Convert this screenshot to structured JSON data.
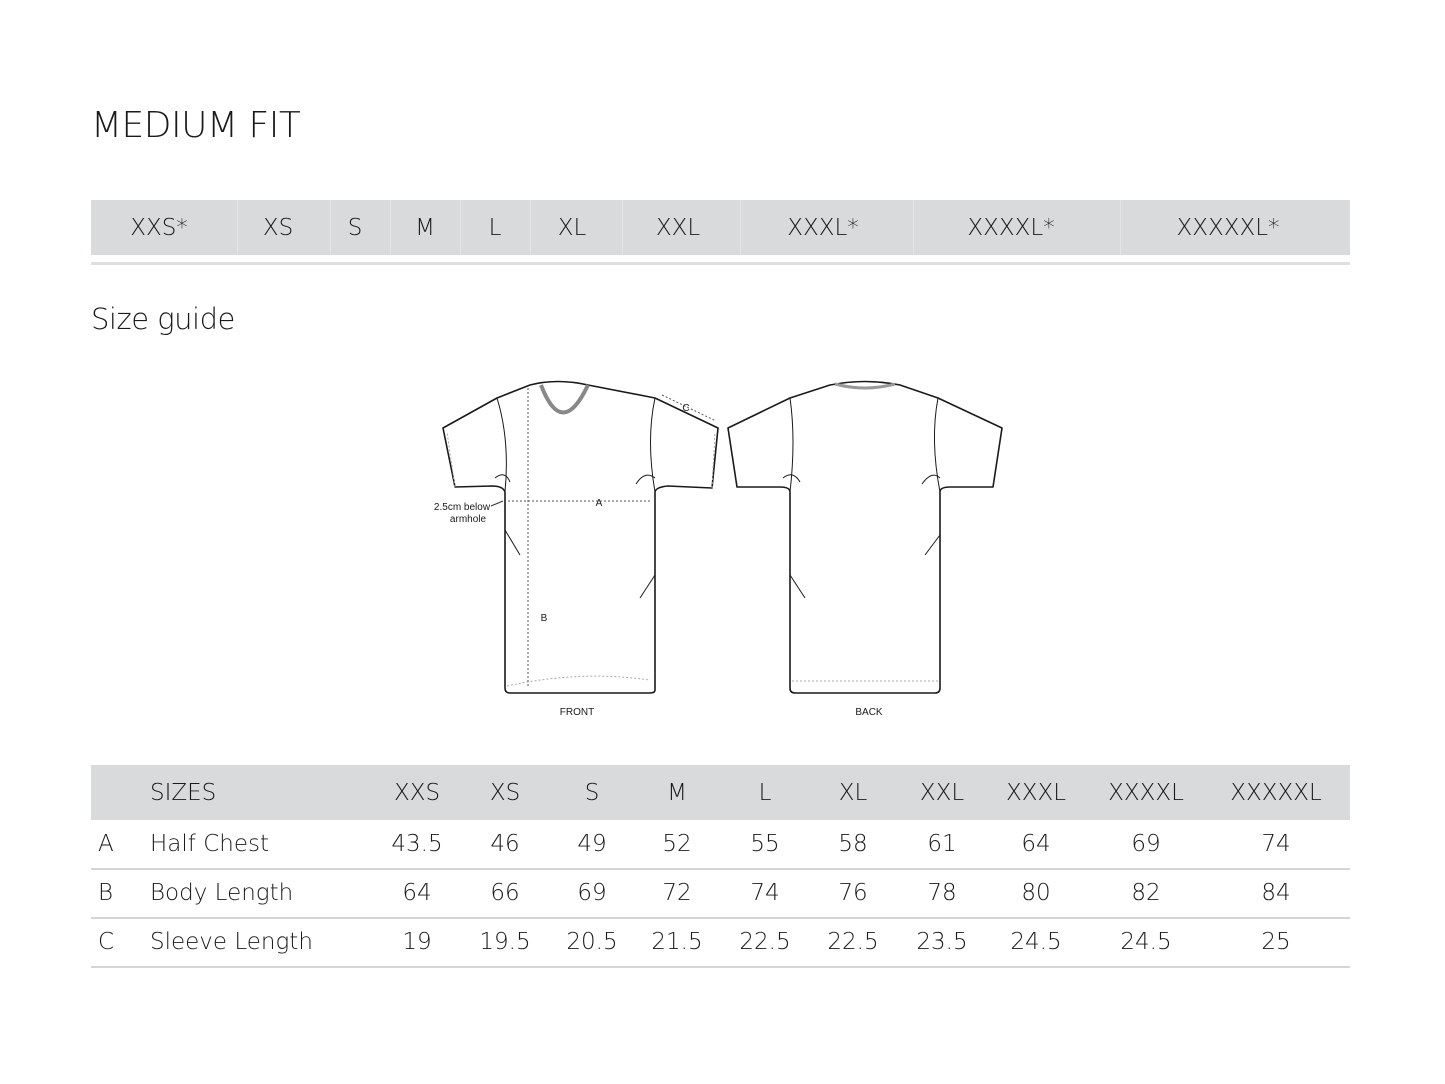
{
  "title": "MEDIUM FIT",
  "available_sizes": [
    "XXS*",
    "XS",
    "S",
    "M",
    "L",
    "XL",
    "XXL",
    "XXXL*",
    "XXXXL*",
    "XXXXXL*"
  ],
  "subtitle": "Size guide",
  "diagram": {
    "front_label": "FRONT",
    "back_label": "BACK",
    "measure_a": "A",
    "measure_b": "B",
    "measure_c": "C",
    "note_line1": "2.5cm below",
    "note_line2": "armhole"
  },
  "table": {
    "header_label": "SIZES",
    "sizes": [
      "XXS",
      "XS",
      "S",
      "M",
      "L",
      "XL",
      "XXL",
      "XXXL",
      "XXXXL",
      "XXXXXL"
    ],
    "rows": [
      {
        "key": "A",
        "label": "Half Chest",
        "values": [
          "43.5",
          "46",
          "49",
          "52",
          "55",
          "58",
          "61",
          "64",
          "69",
          "74"
        ]
      },
      {
        "key": "B",
        "label": "Body Length",
        "values": [
          "64",
          "66",
          "69",
          "72",
          "74",
          "76",
          "78",
          "80",
          "82",
          "84"
        ]
      },
      {
        "key": "C",
        "label": "Sleeve Length",
        "values": [
          "19",
          "19.5",
          "20.5",
          "21.5",
          "22.5",
          "22.5",
          "23.5",
          "24.5",
          "24.5",
          "25"
        ]
      }
    ]
  },
  "colors": {
    "header_bg": "#d9dadc",
    "rule": "#d4d5d7",
    "text": "#1a1a1a"
  }
}
